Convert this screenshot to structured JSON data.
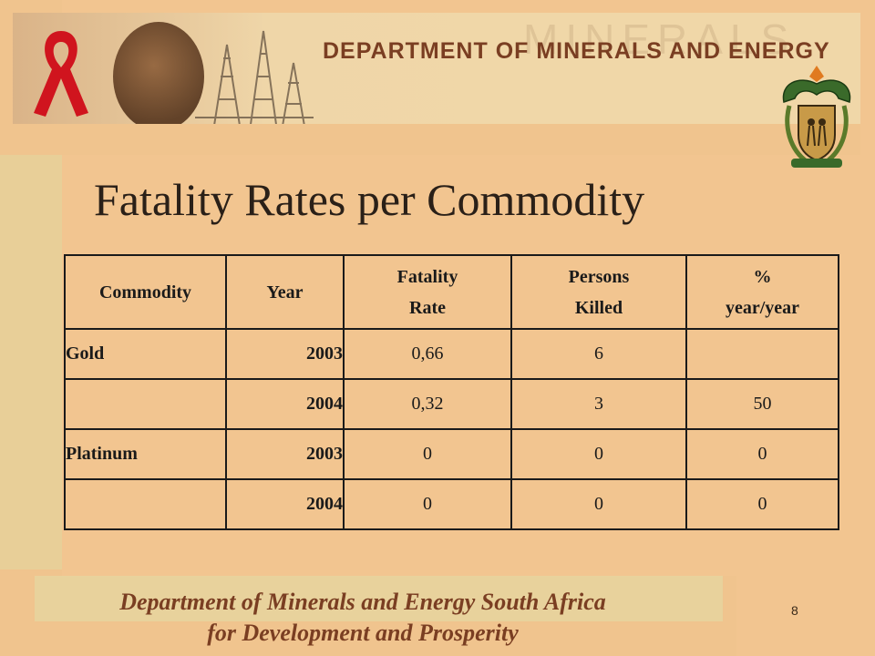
{
  "banner": {
    "department_title": "DEPARTMENT OF MINERALS AND ENERGY",
    "watermark": "MINERALS"
  },
  "slide": {
    "title": "Fatality Rates per Commodity",
    "page_number": "8"
  },
  "table": {
    "headers": {
      "commodity": "Commodity",
      "year": "Year",
      "fatality_rate_1": "Fatality",
      "fatality_rate_2": "Rate",
      "persons_killed_1": "Persons",
      "persons_killed_2": "Killed",
      "pct_1": "%",
      "pct_2": "year/year"
    },
    "rows": [
      {
        "commodity": "Gold",
        "year": "2003",
        "rate": "0,66",
        "killed": "6",
        "pct": ""
      },
      {
        "commodity": "",
        "year": "2004",
        "rate": "0,32",
        "killed": "3",
        "pct": "50"
      },
      {
        "commodity": "Platinum",
        "year": "2003",
        "rate": "0",
        "killed": "0",
        "pct": "0"
      },
      {
        "commodity": "",
        "year": "2004",
        "rate": "0",
        "killed": "0",
        "pct": "0"
      }
    ]
  },
  "footer": {
    "line1": "Department of Minerals and Energy South Africa",
    "line2": "for Development and Prosperity"
  },
  "colors": {
    "background": "#f2c590",
    "accent_brown": "#7a3e22",
    "ribbon_red": "#d0141e"
  },
  "icons": [
    "aids-ribbon-icon",
    "coat-of-arms-icon"
  ]
}
